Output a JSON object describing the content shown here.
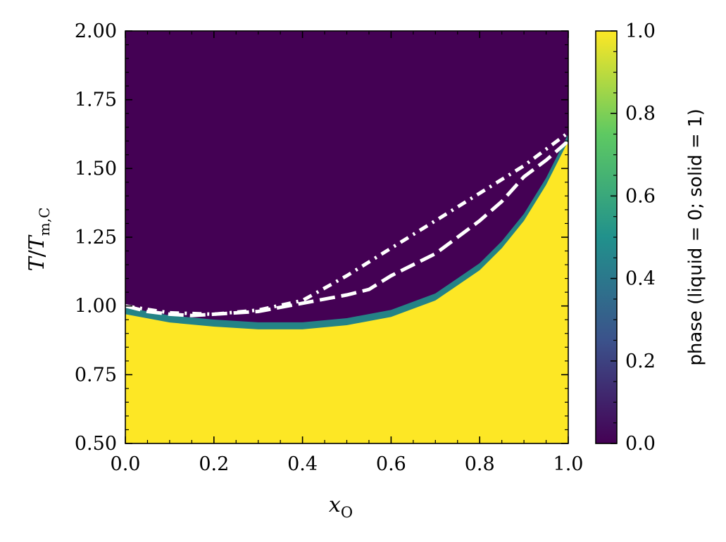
{
  "chart_data": {
    "type": "heatmap",
    "title": "",
    "xlabel": "x",
    "xlabel_subscript": "O",
    "ylabel_parts": {
      "T": "T",
      "slash": "/",
      "Tm": "T",
      "sub": "m,C"
    },
    "xlim": [
      0.0,
      1.0
    ],
    "ylim": [
      0.5,
      2.0
    ],
    "xticks": [
      "0.0",
      "0.2",
      "0.4",
      "0.6",
      "0.8",
      "1.0"
    ],
    "xtick_values": [
      0.0,
      0.2,
      0.4,
      0.6,
      0.8,
      1.0
    ],
    "yticks": [
      "0.50",
      "0.75",
      "1.00",
      "1.25",
      "1.50",
      "1.75",
      "2.00"
    ],
    "ytick_values": [
      0.5,
      0.75,
      1.0,
      1.25,
      1.5,
      1.75,
      2.0
    ],
    "colormap": "viridis",
    "colormap_stops": [
      "#440154",
      "#3b528b",
      "#21918c",
      "#5ec962",
      "#fde725"
    ],
    "colorbar": {
      "label": "phase (liquid = 0; solid = 1)",
      "range": [
        0.0,
        1.0
      ],
      "ticks": [
        "0.0",
        "0.2",
        "0.4",
        "0.6",
        "0.8",
        "1.0"
      ],
      "tick_values": [
        0.0,
        0.2,
        0.4,
        0.6,
        0.8,
        1.0
      ]
    },
    "phase_boundary": {
      "x": [
        0.0,
        0.1,
        0.2,
        0.3,
        0.4,
        0.5,
        0.6,
        0.7,
        0.8,
        0.85,
        0.9,
        0.95,
        1.0
      ],
      "y": [
        0.97,
        0.94,
        0.925,
        0.915,
        0.915,
        0.93,
        0.96,
        1.02,
        1.13,
        1.21,
        1.31,
        1.44,
        1.6
      ]
    },
    "series": [
      {
        "style": "dashed",
        "color": "#ffffff",
        "x": [
          0.0,
          0.05,
          0.1,
          0.15,
          0.2,
          0.3,
          0.4,
          0.5,
          0.55,
          0.6,
          0.7,
          0.8,
          0.85,
          0.9,
          0.95,
          1.0
        ],
        "y": [
          1.0,
          0.98,
          0.97,
          0.965,
          0.97,
          0.98,
          1.01,
          1.04,
          1.06,
          1.11,
          1.19,
          1.31,
          1.38,
          1.47,
          1.53,
          1.6
        ]
      },
      {
        "style": "dotted",
        "color": "#ffffff",
        "x": [
          0.0,
          0.1,
          0.2,
          0.3,
          0.4,
          0.5,
          0.6,
          0.7,
          0.8,
          0.9,
          1.0
        ],
        "y": [
          1.0,
          0.975,
          0.97,
          0.985,
          1.02,
          1.11,
          1.21,
          1.31,
          1.41,
          1.51,
          1.63
        ]
      }
    ],
    "grid": false
  }
}
